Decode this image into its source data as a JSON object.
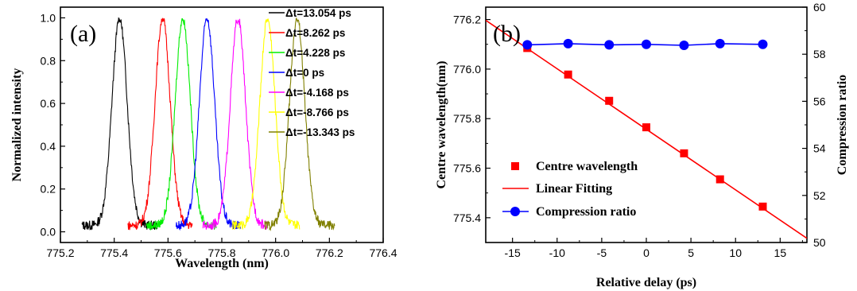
{
  "chart_data": [
    {
      "type": "line",
      "panel_label": "(a)",
      "xlabel": "Wavelength (nm)",
      "ylabel": "Normalized intensity",
      "xlim": [
        775.2,
        776.4
      ],
      "ylim": [
        -0.05,
        1.05
      ],
      "xticks": [
        "775.2",
        "775.4",
        "775.6",
        "775.8",
        "776.0",
        "776.2",
        "776.4"
      ],
      "yticks": [
        "0.0",
        "0.2",
        "0.4",
        "0.6",
        "0.8",
        "1.0"
      ],
      "legend_position": "top-right",
      "series": [
        {
          "name": "Δt=13.054 ps",
          "color": "#000000",
          "center": 775.42,
          "xmin": 775.28,
          "xmax": 775.56
        },
        {
          "name": "Δt=8.262 ps",
          "color": "#ff0000",
          "center": 775.58,
          "xmin": 775.45,
          "xmax": 775.69
        },
        {
          "name": "Δt=4.228 ps",
          "color": "#00ee00",
          "center": 775.655,
          "xmin": 775.52,
          "xmax": 775.78
        },
        {
          "name": "Δt=0 ps",
          "color": "#0000ff",
          "center": 775.745,
          "xmin": 775.63,
          "xmax": 775.87
        },
        {
          "name": "Δt=-4.168 ps",
          "color": "#ff00ff",
          "center": 775.86,
          "xmin": 775.73,
          "xmax": 775.97
        },
        {
          "name": "Δt=-8.766 ps",
          "color": "#ffff00",
          "center": 775.97,
          "xmin": 775.84,
          "xmax": 776.09
        },
        {
          "name": "Δt=-13.343 ps",
          "color": "#808000",
          "center": 776.08,
          "xmin": 775.96,
          "xmax": 776.22
        }
      ]
    },
    {
      "type": "scatter",
      "panel_label": "(b)",
      "xlabel": "Relative delay (ps)",
      "ylabel_left": "Centre wavelength(nm)",
      "ylabel_right": "Compression ratio",
      "xlim": [
        -18,
        18
      ],
      "ylim_left": [
        775.3,
        776.25
      ],
      "ylim_right": [
        50,
        60
      ],
      "xticks": [
        "-15",
        "-10",
        "-5",
        "0",
        "5",
        "10",
        "15"
      ],
      "yticks_left": [
        "775.4",
        "775.6",
        "775.8",
        "776.0",
        "776.2"
      ],
      "yticks_right": [
        "50",
        "52",
        "54",
        "56",
        "58",
        "60"
      ],
      "legend_position": "bottom-left",
      "centre_wavelength": {
        "name": "Centre wavelength",
        "color": "#ff0000",
        "x": [
          -13.343,
          -8.766,
          -4.168,
          0,
          4.228,
          8.262,
          13.054
        ],
        "y": [
          776.085,
          775.978,
          775.872,
          775.765,
          775.66,
          775.555,
          775.445
        ]
      },
      "linear_fit": {
        "name": "Linear Fitting",
        "color": "#ff0000",
        "x": [
          -18,
          18
        ],
        "y": [
          776.197,
          775.317
        ]
      },
      "compression_ratio": {
        "name": "Compression ratio",
        "color": "#0000ff",
        "x": [
          -13.343,
          -8.766,
          -4.168,
          0,
          4.228,
          8.262,
          13.054
        ],
        "y": [
          58.4,
          58.45,
          58.4,
          58.42,
          58.38,
          58.45,
          58.42
        ]
      }
    }
  ]
}
